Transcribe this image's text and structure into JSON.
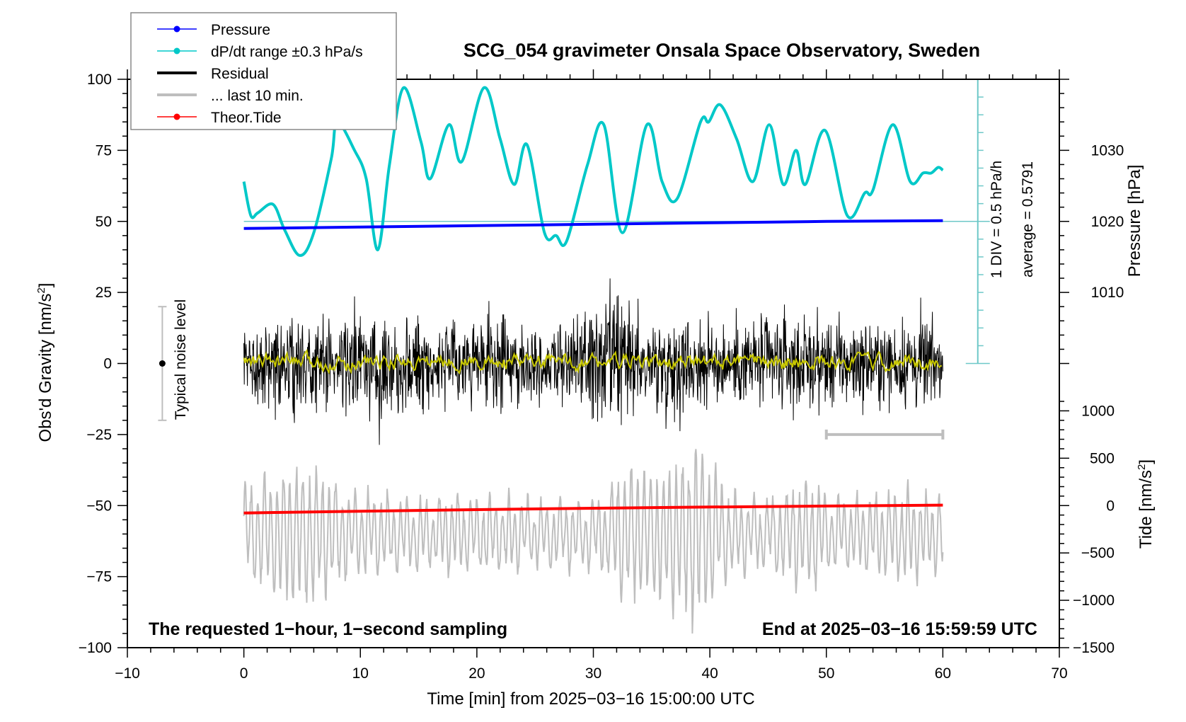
{
  "chart_data": {
    "type": "line",
    "title": "SCG_054 gravimeter Onsala Space Observatory, Sweden",
    "xlabel": "Time [min] from 2025−03−16 15:00:00 UTC",
    "ylabel_left": "Obs'd Gravity [nm/s",
    "ylabel_left_sup": "2",
    "ylabel_left_tail": "]",
    "ylabel_right_pressure": "Pressure [hPa]",
    "ylabel_right_tide": "Tide [nm/s",
    "ylabel_right_tide_sup": "2",
    "ylabel_right_tide_tail": "]",
    "xlim": [
      -10,
      70
    ],
    "ylim_left": [
      -100,
      100
    ],
    "x_ticks": [
      -10,
      0,
      10,
      20,
      30,
      40,
      50,
      60,
      70
    ],
    "x_tick_labels": [
      "−10",
      "0",
      "10",
      "20",
      "30",
      "40",
      "50",
      "60",
      "70"
    ],
    "y_ticks_left": [
      100,
      75,
      50,
      25,
      0,
      -25,
      -50,
      -75,
      -100
    ],
    "y_tick_labels_left": [
      "100",
      "75",
      "50",
      "25",
      "0",
      "−25",
      "−50",
      "−75",
      "−100"
    ],
    "pressure_axis": {
      "ticks": [
        1030,
        1020,
        1010
      ],
      "tick_labels": [
        "1030",
        "1020",
        "1010"
      ],
      "value_at_left_100": 1040,
      "value_at_left_0": 1000
    },
    "tide_axis": {
      "ticks": [
        1000,
        500,
        0,
        -500,
        -1000,
        -1500
      ],
      "tick_labels": [
        "1000",
        "500",
        "0",
        "−500",
        "−1000",
        "−1500"
      ],
      "value_at_left_minus100": -1500,
      "value_at_left_minus50": 0
    },
    "legend": {
      "placement": "top-left",
      "entries": [
        {
          "label": "Pressure",
          "color": "#0000ff",
          "marker": "dot"
        },
        {
          "label": "dP/dt range ±0.3 hPa/s",
          "color": "#00c8c8",
          "marker": "dot"
        },
        {
          "label": "Residual",
          "color": "#000000",
          "marker": "line"
        },
        {
          "label": "... last 10 min.",
          "color": "#bebebe",
          "marker": "line"
        },
        {
          "label": "Theor.Tide",
          "color": "#ff0000",
          "marker": "dot"
        }
      ]
    },
    "annotations": {
      "div_label": "1 DIV = 0.5 hPa/h",
      "average_label": "average = 0.5791",
      "noise_label": "Typical noise level",
      "sampling_label": "The requested 1−hour, 1−second sampling",
      "end_label": "End at 2025−03−16 15:59:59 UTC"
    },
    "noise_bar": {
      "x": -7,
      "center": 0,
      "half_range": 20
    },
    "last10_bar": {
      "x_start": 50,
      "x_end": 60,
      "y": -25
    },
    "dpdt_scale": {
      "x": 63,
      "y_top": 100,
      "y_bottom": 0,
      "y_baseline": 50,
      "divisions": 16
    },
    "series": [
      {
        "name": "Pressure",
        "color": "#0000ff",
        "axis": "pressure_hPa",
        "x": [
          0,
          10,
          20,
          30,
          40,
          50,
          60
        ],
        "values": [
          1019.0,
          1019.2,
          1019.4,
          1019.6,
          1019.8,
          1020.0,
          1020.1
        ]
      },
      {
        "name": "dP/dt",
        "color": "#00c8c8",
        "axis": "left_display_units",
        "x": [
          0,
          0.6,
          1.2,
          2.5,
          3.5,
          4.8,
          6.0,
          7.5,
          8.0,
          9.5,
          10.5,
          11.5,
          12.5,
          13.7,
          15.2,
          16.0,
          17.6,
          18.7,
          20.6,
          22.0,
          23.2,
          24.3,
          25.8,
          26.8,
          27.7,
          29.5,
          30.9,
          32.5,
          34.6,
          35.9,
          37.2,
          39.2,
          39.9,
          40.9,
          42.3,
          43.7,
          45.1,
          46.3,
          47.4,
          48.2,
          49.9,
          51.8,
          53.3,
          54.0,
          55.7,
          57.2,
          58.3,
          59.0,
          59.6,
          60.0
        ],
        "values": [
          64,
          52,
          53,
          56,
          47,
          38,
          46,
          72,
          85,
          75,
          65,
          40,
          70,
          97,
          78,
          65,
          84,
          71,
          97,
          79,
          63,
          77,
          46,
          45,
          43,
          70,
          84,
          46,
          84,
          64,
          58,
          85,
          85,
          91,
          79,
          64,
          84,
          63,
          75,
          63,
          82,
          52,
          60,
          61,
          84,
          64,
          67,
          67,
          69,
          68
        ]
      },
      {
        "name": "Residual",
        "color": "#000000",
        "axis": "left",
        "x_range": [
          0,
          60
        ],
        "sampling_seconds": 1,
        "typical_amplitude": 12,
        "envelope_x": [
          0,
          3,
          5,
          8,
          11,
          14,
          18,
          22,
          26,
          29,
          31,
          33,
          35,
          37,
          39,
          42,
          45,
          48,
          51,
          55,
          58,
          60
        ],
        "envelope_amp": [
          10,
          14,
          18,
          12,
          20,
          16,
          12,
          14,
          12,
          14,
          22,
          18,
          14,
          16,
          14,
          12,
          16,
          14,
          14,
          12,
          16,
          10
        ],
        "max_value": 45,
        "min_value": -37
      },
      {
        "name": "Residual smoothed",
        "color": "#c8c800",
        "axis": "left",
        "x_range": [
          0,
          60
        ],
        "mean": 0.5,
        "typical_amplitude": 2
      },
      {
        "name": "... last 10 min.",
        "color": "#bebebe",
        "axis": "left",
        "x_range": [
          0,
          60
        ],
        "center": -60,
        "envelope_x": [
          0,
          5,
          10,
          15,
          20,
          25,
          30,
          33,
          36,
          39,
          42,
          45,
          48,
          52,
          56,
          60
        ],
        "envelope_amp": [
          18,
          26,
          16,
          12,
          14,
          12,
          12,
          26,
          24,
          34,
          14,
          12,
          20,
          12,
          16,
          14
        ]
      },
      {
        "name": "Theor.Tide",
        "color": "#ff0000",
        "axis": "tide_nm_s2",
        "x": [
          0,
          10,
          20,
          30,
          40,
          50,
          60
        ],
        "values": [
          -78,
          -60,
          -43,
          -28,
          -15,
          -5,
          5
        ]
      }
    ]
  }
}
